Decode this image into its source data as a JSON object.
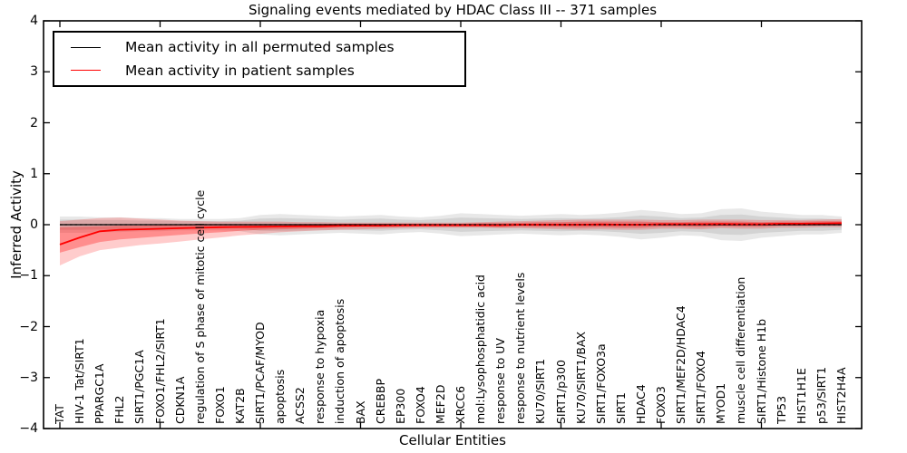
{
  "title": "Signaling events mediated by HDAC Class III -- 371 samples",
  "ylabel": "Inferred Activity",
  "xlabel": "Cellular Entities",
  "legend": {
    "items": [
      {
        "label": "Mean activity in all permuted samples",
        "color": "#000000"
      },
      {
        "label": "Mean activity in patient samples",
        "color": "#ff0000"
      }
    ]
  },
  "axes": {
    "yticks": [
      {
        "value": 4,
        "label": "4"
      },
      {
        "value": 3,
        "label": "3"
      },
      {
        "value": 2,
        "label": "2"
      },
      {
        "value": 1,
        "label": "1"
      },
      {
        "value": 0,
        "label": "0"
      },
      {
        "value": -1,
        "label": "−1"
      },
      {
        "value": -2,
        "label": "−2"
      },
      {
        "value": -3,
        "label": "−3"
      },
      {
        "value": -4,
        "label": "−4"
      }
    ],
    "xtick_indices": [
      0,
      5,
      10,
      15,
      20,
      25,
      30,
      35
    ]
  },
  "chart_data": {
    "type": "line",
    "title": "Signaling events mediated by HDAC Class III -- 371 samples",
    "xlabel": "Cellular Entities",
    "ylabel": "Inferred Activity",
    "ylim": [
      -4,
      4
    ],
    "grid": false,
    "legend_position": "upper left",
    "categories": [
      "TAT",
      "HIV-1 Tat/SIRT1",
      "PPARGC1A",
      "FHL2",
      "SIRT1/PGC1A",
      "FOXO1/FHL2/SIRT1",
      "CDKN1A",
      "regulation of S phase of mitotic cell cycle",
      "FOXO1",
      "KAT2B",
      "SIRT1/PCAF/MYOD",
      "apoptosis",
      "ACSS2",
      "response to hypoxia",
      "induction of apoptosis",
      "BAX",
      "CREBBP",
      "EP300",
      "FOXO4",
      "MEF2D",
      "XRCC6",
      "mol:Lysophosphatidic acid",
      "response to UV",
      "response to nutrient levels",
      "KU70/SIRT1",
      "SIRT1/p300",
      "KU70/SIRT1/BAX",
      "SIRT1/FOXO3a",
      "SIRT1",
      "HDAC4",
      "FOXO3",
      "SIRT1/MEF2D/HDAC4",
      "SIRT1/FOXO4",
      "MYOD1",
      "muscle cell differentiation",
      "SIRT1/Histone H1b",
      "TP53",
      "HIST1H1E",
      "p53/SIRT1",
      "HIST2H4A"
    ],
    "series": [
      {
        "name": "Mean activity in all permuted samples",
        "color": "#000000",
        "values": [
          0,
          0,
          0,
          0,
          0,
          0,
          0,
          0,
          0,
          0,
          0,
          0,
          0,
          0,
          0,
          0,
          0,
          0,
          0,
          0,
          0,
          0,
          0,
          0,
          0,
          0,
          0,
          0,
          0,
          0,
          0,
          0,
          0,
          0,
          0,
          0,
          0,
          0,
          0,
          0
        ],
        "band_halfwidth": [
          0.1,
          0.1,
          0.09,
          0.09,
          0.08,
          0.08,
          0.07,
          0.07,
          0.07,
          0.08,
          0.12,
          0.13,
          0.12,
          0.11,
          0.1,
          0.11,
          0.12,
          0.1,
          0.09,
          0.11,
          0.14,
          0.13,
          0.12,
          0.11,
          0.12,
          0.13,
          0.12,
          0.13,
          0.15,
          0.18,
          0.16,
          0.13,
          0.14,
          0.19,
          0.2,
          0.16,
          0.14,
          0.12,
          0.12,
          0.1
        ]
      },
      {
        "name": "Mean activity in patient samples",
        "color": "#ff0000",
        "values": [
          -0.39,
          -0.25,
          -0.13,
          -0.1,
          -0.09,
          -0.08,
          -0.07,
          -0.06,
          -0.05,
          -0.045,
          -0.04,
          -0.035,
          -0.03,
          -0.03,
          -0.02,
          -0.02,
          -0.02,
          -0.015,
          -0.01,
          -0.01,
          -0.01,
          -0.01,
          -0.01,
          0,
          0,
          0,
          0,
          0.005,
          0,
          0,
          0.01,
          0.01,
          0.01,
          0.015,
          0.01,
          0.01,
          0.02,
          0.02,
          0.025,
          0.03
        ],
        "band_high": [
          0.07,
          0.1,
          0.13,
          0.14,
          0.12,
          0.1,
          0.08,
          0.07,
          0.06,
          0.06,
          0.06,
          0.06,
          0.05,
          0.05,
          0.04,
          0.04,
          0.04,
          0.04,
          0.04,
          0.04,
          0.04,
          0.05,
          0.06,
          0.07,
          0.08,
          0.09,
          0.1,
          0.1,
          0.1,
          0.1,
          0.09,
          0.09,
          0.1,
          0.1,
          0.1,
          0.09,
          0.09,
          0.09,
          0.1,
          0.11
        ],
        "band_low": [
          -0.8,
          -0.62,
          -0.5,
          -0.45,
          -0.4,
          -0.37,
          -0.33,
          -0.29,
          -0.25,
          -0.21,
          -0.18,
          -0.15,
          -0.13,
          -0.11,
          -0.1,
          -0.09,
          -0.08,
          -0.07,
          -0.06,
          -0.06,
          -0.06,
          -0.06,
          -0.07,
          -0.07,
          -0.08,
          -0.09,
          -0.1,
          -0.09,
          -0.1,
          -0.1,
          -0.08,
          -0.08,
          -0.09,
          -0.07,
          -0.08,
          -0.08,
          -0.06,
          -0.06,
          -0.05,
          -0.05
        ],
        "inner_band_high": [
          -0.05,
          -0.04,
          -0.03,
          -0.02,
          -0.02,
          -0.01,
          -0.01,
          -0.01,
          0,
          0,
          0.01,
          0.01,
          0.01,
          0.01,
          0.02,
          0.02,
          0.02,
          0.02,
          0.02,
          0.02,
          0.02,
          0.03,
          0.03,
          0.04,
          0.05,
          0.05,
          0.06,
          0.06,
          0.06,
          0.06,
          0.05,
          0.05,
          0.06,
          0.06,
          0.06,
          0.05,
          0.06,
          0.06,
          0.07,
          0.07
        ],
        "inner_band_low": [
          -0.55,
          -0.44,
          -0.34,
          -0.29,
          -0.26,
          -0.23,
          -0.2,
          -0.17,
          -0.15,
          -0.12,
          -0.1,
          -0.09,
          -0.08,
          -0.07,
          -0.06,
          -0.05,
          -0.05,
          -0.04,
          -0.04,
          -0.04,
          -0.04,
          -0.04,
          -0.05,
          -0.04,
          -0.05,
          -0.05,
          -0.06,
          -0.05,
          -0.06,
          -0.06,
          -0.04,
          -0.04,
          -0.05,
          -0.03,
          -0.04,
          -0.04,
          -0.02,
          -0.02,
          -0.01,
          -0.01
        ]
      }
    ]
  }
}
